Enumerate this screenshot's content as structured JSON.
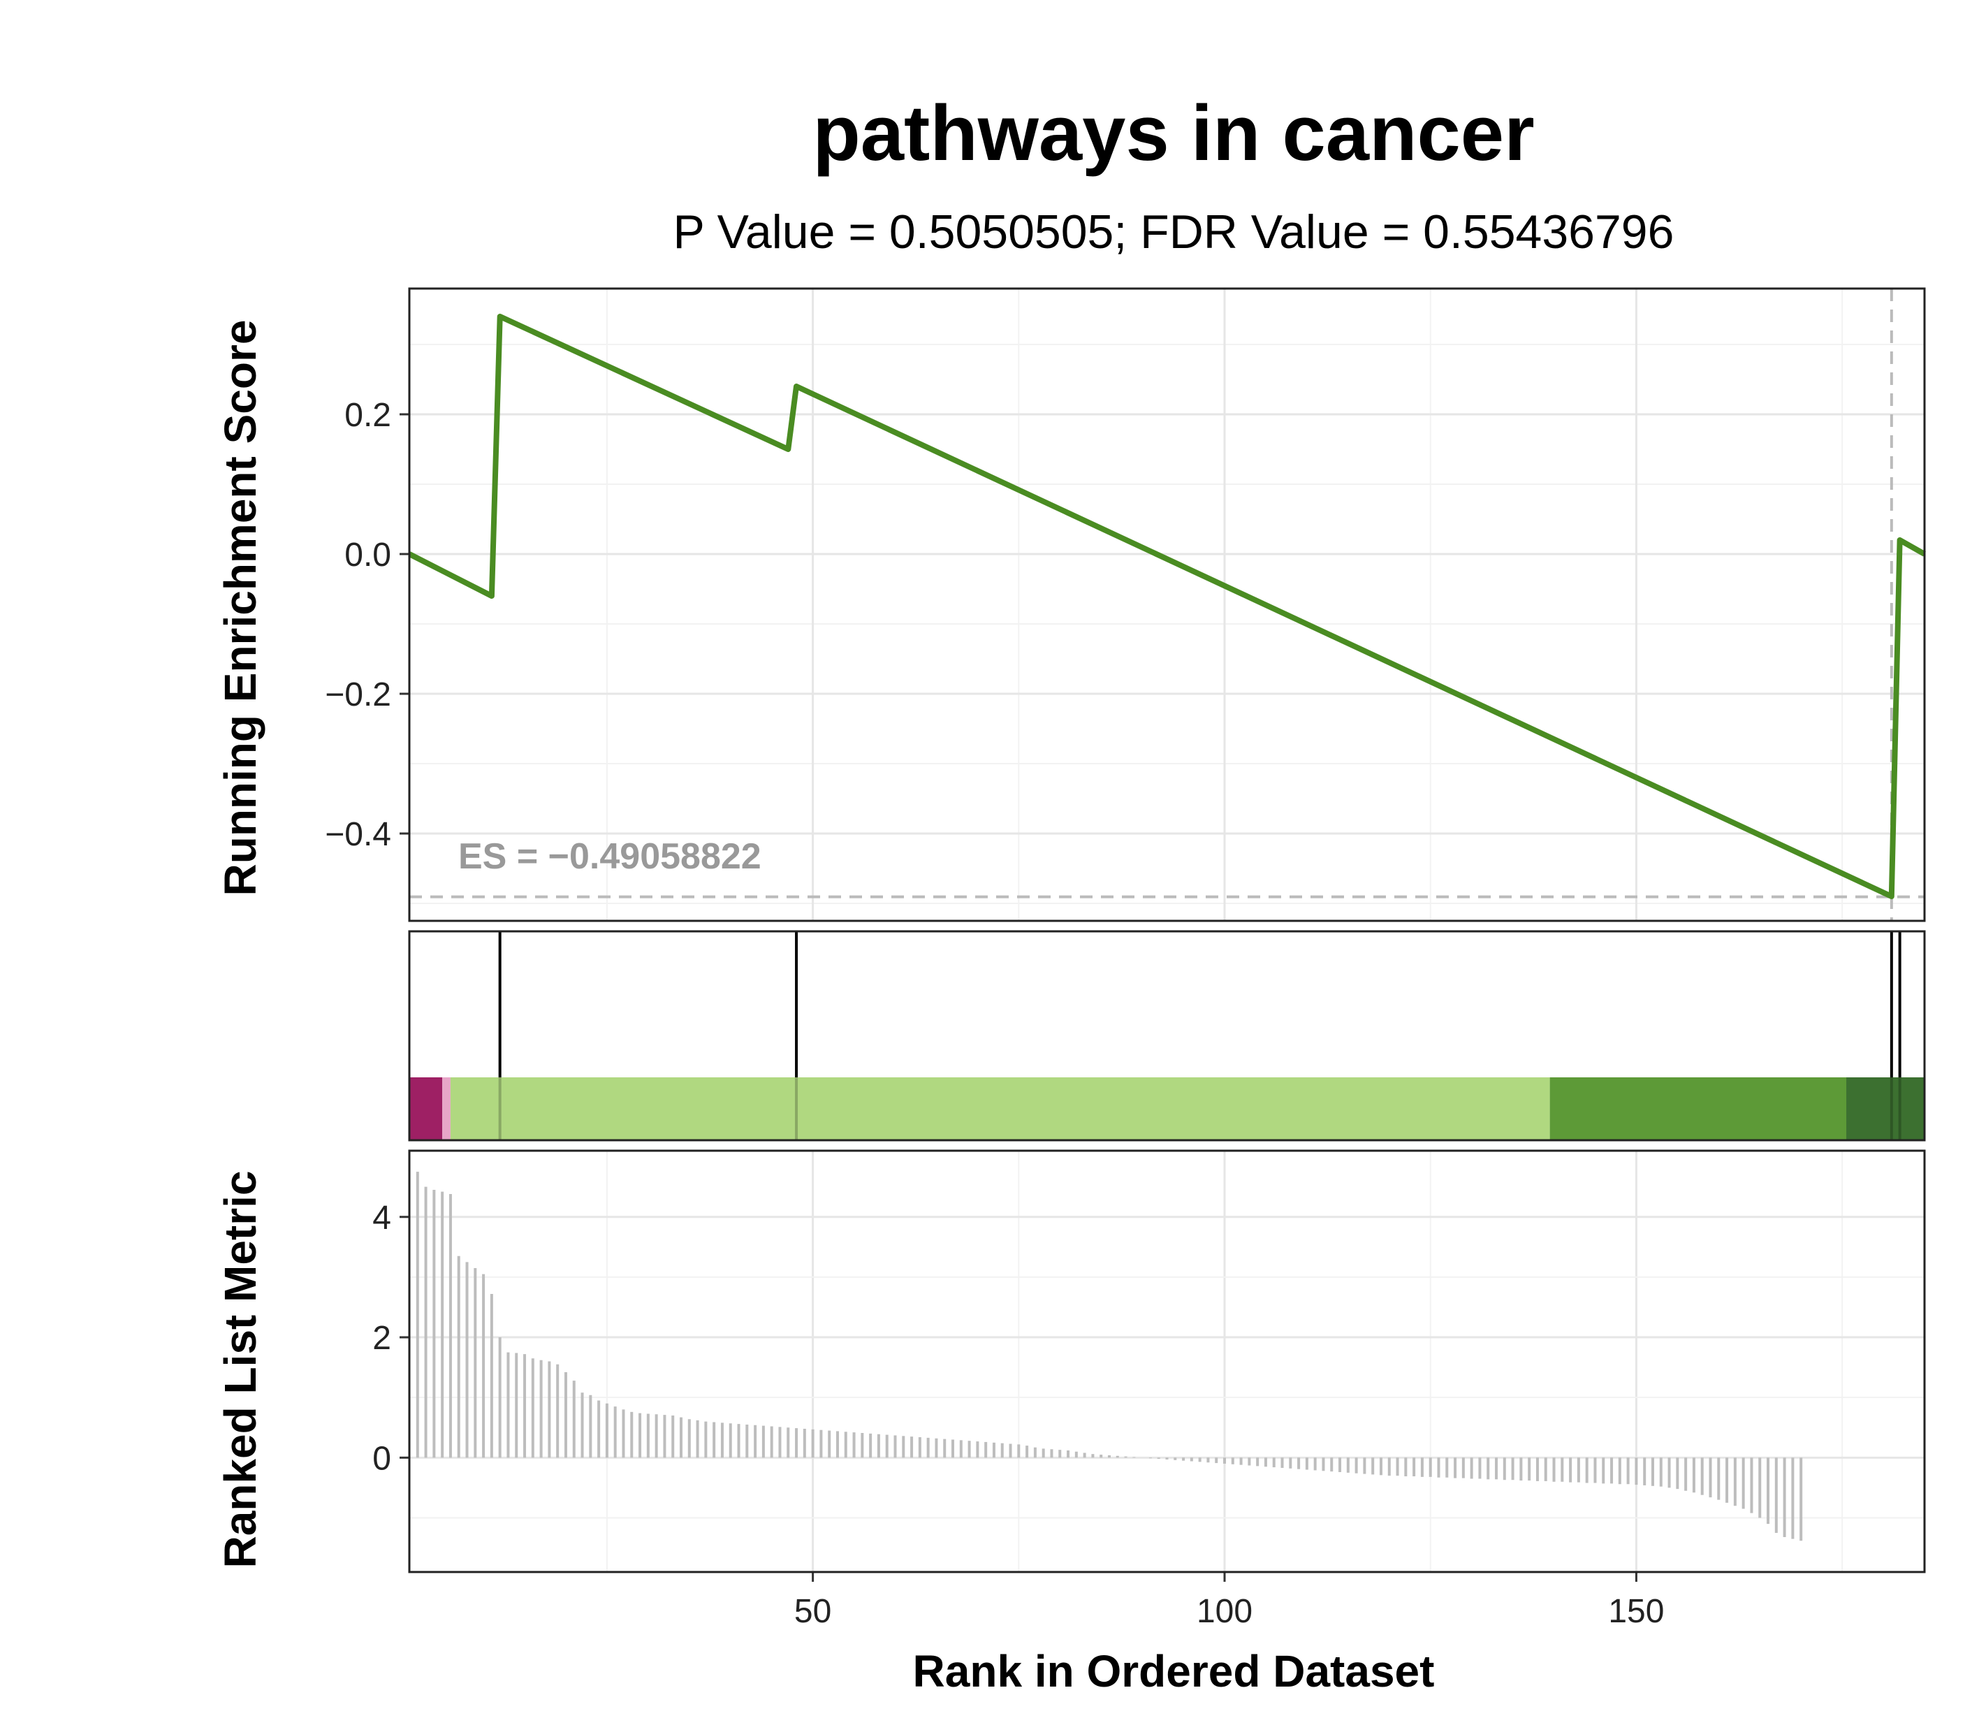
{
  "chart_data": {
    "type": "line",
    "title": "pathways in cancer",
    "subtitle": "P Value = 0.5050505; FDR Value = 0.55436796",
    "xlabel": "Rank in Ordered Dataset",
    "xlim": [
      1,
      185
    ],
    "x_ticks": [
      50,
      100,
      150
    ],
    "x_tick_labels": [
      "50",
      "100",
      "150"
    ],
    "panels": [
      {
        "name": "enrichment",
        "ylabel": "Running Enrichment Score",
        "ylim": [
          -0.525,
          0.38
        ],
        "y_ticks": [
          -0.4,
          -0.2,
          0.0,
          0.2
        ],
        "y_tick_labels": [
          "−0.4",
          "−0.2",
          "0.0",
          "0.2"
        ],
        "series": [
          {
            "color": "#4a8c22",
            "x": [
              1,
              11,
              12,
              47,
              48,
              181,
              182,
              185
            ],
            "y": [
              0.0,
              -0.06,
              0.34,
              0.15,
              0.24,
              -0.49,
              0.02,
              0.0
            ]
          }
        ],
        "es_annotation": "ES = −0.49058822",
        "es_value": -0.49058822,
        "es_rank": 181
      },
      {
        "name": "hits",
        "hit_positions": [
          12,
          48,
          181,
          182
        ],
        "color_bands": [
          {
            "from": 1,
            "to": 5,
            "color": "#9e2064"
          },
          {
            "from": 5,
            "to": 6,
            "color": "#e8a6c8"
          },
          {
            "from": 6,
            "to": 139.5,
            "color": "#b0d880"
          },
          {
            "from": 139.5,
            "to": 175.5,
            "color": "#5d9a37"
          },
          {
            "from": 175.5,
            "to": 185,
            "color": "#3c7030"
          }
        ]
      },
      {
        "name": "metric",
        "ylabel": "Ranked List Metric",
        "ylim": [
          -1.9,
          5.1
        ],
        "y_ticks": [
          0,
          2,
          4
        ],
        "y_tick_labels": [
          "0",
          "2",
          "4"
        ],
        "x_start": 2,
        "x_step": 1,
        "values": [
          4.75,
          4.5,
          4.45,
          4.42,
          4.38,
          3.35,
          3.25,
          3.15,
          3.05,
          2.72,
          2.0,
          1.75,
          1.74,
          1.72,
          1.65,
          1.62,
          1.6,
          1.55,
          1.42,
          1.28,
          1.08,
          1.04,
          0.95,
          0.9,
          0.85,
          0.8,
          0.76,
          0.74,
          0.73,
          0.72,
          0.71,
          0.7,
          0.67,
          0.64,
          0.62,
          0.6,
          0.59,
          0.58,
          0.57,
          0.56,
          0.55,
          0.54,
          0.53,
          0.52,
          0.51,
          0.5,
          0.49,
          0.48,
          0.47,
          0.46,
          0.45,
          0.44,
          0.43,
          0.42,
          0.41,
          0.4,
          0.39,
          0.38,
          0.37,
          0.36,
          0.35,
          0.34,
          0.33,
          0.32,
          0.31,
          0.3,
          0.29,
          0.28,
          0.27,
          0.26,
          0.25,
          0.24,
          0.23,
          0.22,
          0.2,
          0.17,
          0.15,
          0.14,
          0.13,
          0.12,
          0.1,
          0.08,
          0.06,
          0.05,
          0.04,
          0.03,
          0.02,
          0.01,
          0.0,
          -0.01,
          -0.02,
          -0.03,
          -0.04,
          -0.05,
          -0.06,
          -0.07,
          -0.08,
          -0.09,
          -0.1,
          -0.11,
          -0.12,
          -0.13,
          -0.14,
          -0.15,
          -0.16,
          -0.17,
          -0.18,
          -0.19,
          -0.2,
          -0.21,
          -0.22,
          -0.23,
          -0.24,
          -0.25,
          -0.26,
          -0.27,
          -0.28,
          -0.29,
          -0.3,
          -0.3,
          -0.31,
          -0.31,
          -0.32,
          -0.32,
          -0.33,
          -0.33,
          -0.34,
          -0.34,
          -0.35,
          -0.35,
          -0.36,
          -0.36,
          -0.37,
          -0.37,
          -0.38,
          -0.38,
          -0.39,
          -0.39,
          -0.4,
          -0.4,
          -0.41,
          -0.41,
          -0.42,
          -0.42,
          -0.43,
          -0.43,
          -0.44,
          -0.44,
          -0.45,
          -0.46,
          -0.47,
          -0.48,
          -0.5,
          -0.52,
          -0.55,
          -0.58,
          -0.62,
          -0.66,
          -0.7,
          -0.75,
          -0.8,
          -0.85,
          -0.92,
          -1.0,
          -1.1,
          -1.25,
          -1.32,
          -1.35,
          -1.38
        ]
      }
    ]
  }
}
